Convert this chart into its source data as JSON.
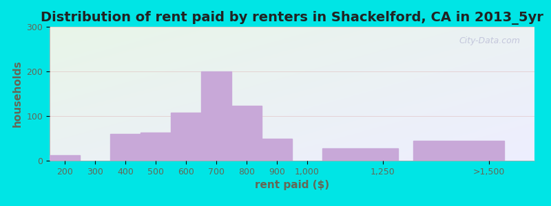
{
  "title": "Distribution of rent paid by renters in Shackelford, CA in 2013_5yr",
  "xlabel": "rent paid ($)",
  "ylabel": "households",
  "bar_labels": [
    "200",
    "300",
    "400",
    "500",
    "600",
    "700",
    "800",
    "900",
    "1,000",
    "1,250",
    ">1,500"
  ],
  "bar_left_edges": [
    150,
    250,
    350,
    450,
    550,
    650,
    750,
    850,
    950,
    1050,
    1350
  ],
  "bar_widths": [
    100,
    100,
    100,
    100,
    100,
    100,
    100,
    100,
    100,
    250,
    300
  ],
  "bar_tick_pos": [
    200,
    300,
    400,
    500,
    600,
    700,
    800,
    900,
    1000,
    1250,
    1600
  ],
  "bar_values": [
    13,
    0,
    60,
    63,
    107,
    200,
    123,
    50,
    0,
    28,
    45
  ],
  "bar_color": "#c8a8d8",
  "ylim": [
    0,
    300
  ],
  "yticks": [
    0,
    100,
    200,
    300
  ],
  "xlim": [
    150,
    1750
  ],
  "bg_color_topleft": "#e8f5e8",
  "bg_color_bottomright": "#eeeeff",
  "outer_bg": "#00e5e5",
  "title_fontsize": 14,
  "label_fontsize": 11,
  "tick_fontsize": 9,
  "watermark": "City-Data.com",
  "grid_color": "#ddaaaa",
  "tick_color": "#666655"
}
